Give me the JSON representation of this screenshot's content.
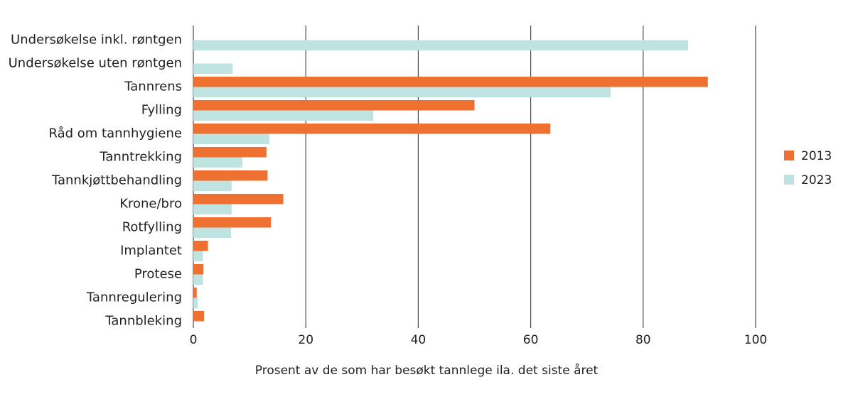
{
  "chart_data": {
    "type": "bar",
    "orientation": "horizontal",
    "categories": [
      "Undersøkelse inkl. røntgen",
      "Undersøkelse uten røntgen",
      "Tannrens",
      "Fylling",
      "Råd om tannhygiene",
      "Tanntrekking",
      "Tannkjøttbehandling",
      "Krone/bro",
      "Rotfylling",
      "Implantet",
      "Protese",
      "Tannregulering",
      "Tannbleking"
    ],
    "series": [
      {
        "name": "2013",
        "color": "#ee7131",
        "values": [
          null,
          null,
          91.5,
          50,
          63.5,
          13,
          13.2,
          16,
          13.8,
          2.6,
          1.8,
          0.6,
          1.9
        ]
      },
      {
        "name": "2023",
        "color": "#bfe3e0",
        "values": [
          88,
          7,
          74.2,
          32,
          13.5,
          8.7,
          6.8,
          6.8,
          6.7,
          1.7,
          1.7,
          0.8,
          null
        ]
      }
    ],
    "xlim": [
      0,
      100
    ],
    "xticks": [
      0,
      20,
      40,
      60,
      80,
      100
    ],
    "xlabel": "Prosent av de som har besøkt tannlege ila. det siste året",
    "ylabel": "",
    "title": "",
    "grid": true,
    "legend_position": "right"
  }
}
